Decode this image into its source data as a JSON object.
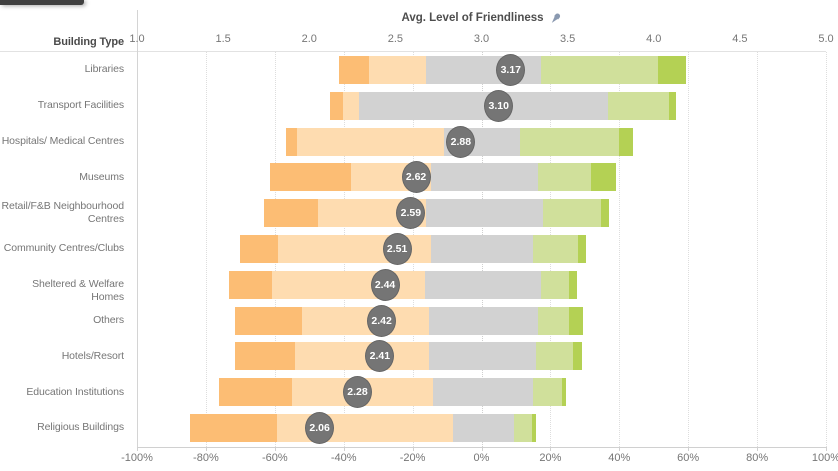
{
  "window": {
    "background": "#ffffff",
    "decoration_tab_color": "#3f3f3f"
  },
  "header": {
    "row_header_label": "Building Type"
  },
  "top_axis": {
    "title": "Avg. Level of Friendliness",
    "pin_icon_color": "#8a99b0",
    "ticks": [
      {
        "label": "1.0",
        "value": 1.0
      },
      {
        "label": "1.5",
        "value": 1.5
      },
      {
        "label": "2.0",
        "value": 2.0
      },
      {
        "label": "2.5",
        "value": 2.5
      },
      {
        "label": "3.0",
        "value": 3.0
      },
      {
        "label": "3.5",
        "value": 3.5
      },
      {
        "label": "4.0",
        "value": 4.0
      },
      {
        "label": "4.5",
        "value": 4.5
      },
      {
        "label": "5.0",
        "value": 5.0
      }
    ],
    "min": 1.0,
    "max": 5.0
  },
  "bottom_axis": {
    "ticks": [
      {
        "label": "-100%",
        "value": -100
      },
      {
        "label": "-80%",
        "value": -80
      },
      {
        "label": "-60%",
        "value": -60
      },
      {
        "label": "-40%",
        "value": -40
      },
      {
        "label": "-20%",
        "value": -20
      },
      {
        "label": "0%",
        "value": 0
      },
      {
        "label": "20%",
        "value": 20
      },
      {
        "label": "40%",
        "value": 40
      },
      {
        "label": "60%",
        "value": 60
      },
      {
        "label": "80%",
        "value": 80
      },
      {
        "label": "100%",
        "value": 100
      }
    ],
    "min": -100,
    "max": 100
  },
  "chart_data": {
    "type": "bar",
    "subtype": "diverging-stacked-likert",
    "title": "Avg. Level of Friendliness",
    "grid": true,
    "x_top_range": [
      1.0,
      5.0
    ],
    "x_bottom_range": [
      -100,
      100
    ],
    "series_names": [
      "rating-1-strong-negative",
      "rating-2-negative",
      "rating-3-neutral",
      "rating-4-positive",
      "rating-5-strong-positive"
    ],
    "series_colors": [
      "#fcbd74",
      "#fedcb0",
      "#d2d2d2",
      "#d0e09b",
      "#b4d154"
    ],
    "circle_color": "#757575",
    "rows": [
      {
        "label_lines": [
          "Libraries"
        ],
        "avg": 3.17,
        "start_pct": -41.3,
        "segments_pct": [
          8.5,
          16.8,
          33.2,
          34.0,
          8.3
        ]
      },
      {
        "label_lines": [
          "Transport Facilities"
        ],
        "avg": 3.1,
        "start_pct": -43.9,
        "segments_pct": [
          3.6,
          4.6,
          72.3,
          17.8,
          2.2
        ]
      },
      {
        "label_lines": [
          "Hospitals/ Medical Centres"
        ],
        "avg": 2.88,
        "start_pct": -56.7,
        "segments_pct": [
          3.2,
          42.7,
          21.9,
          28.7,
          4.2
        ]
      },
      {
        "label_lines": [
          "Museums"
        ],
        "avg": 2.62,
        "start_pct": -61.3,
        "segments_pct": [
          23.4,
          23.2,
          31.0,
          15.5,
          7.1
        ]
      },
      {
        "label_lines": [
          "Retail/F&B Neighbourhood",
          "Centres"
        ],
        "avg": 2.59,
        "start_pct": -63.2,
        "segments_pct": [
          15.8,
          31.4,
          33.9,
          16.8,
          2.3
        ]
      },
      {
        "label_lines": [
          "Community Centres/Clubs"
        ],
        "avg": 2.51,
        "start_pct": -70.2,
        "segments_pct": [
          11.2,
          44.3,
          29.7,
          13.0,
          2.2
        ]
      },
      {
        "label_lines": [
          "Sheltered & Welfare Homes"
        ],
        "avg": 2.44,
        "start_pct": -73.2,
        "segments_pct": [
          12.5,
          44.3,
          33.6,
          8.2,
          2.2
        ]
      },
      {
        "label_lines": [
          "Others"
        ],
        "avg": 2.42,
        "start_pct": -71.6,
        "segments_pct": [
          19.4,
          37.1,
          31.4,
          9.1,
          4.1
        ]
      },
      {
        "label_lines": [
          "Hotels/Resort"
        ],
        "avg": 2.41,
        "start_pct": -71.6,
        "segments_pct": [
          17.4,
          39.1,
          31.0,
          10.8,
          2.5
        ]
      },
      {
        "label_lines": [
          "Education Institutions"
        ],
        "avg": 2.28,
        "start_pct": -76.1,
        "segments_pct": [
          21.0,
          41.1,
          29.0,
          8.3,
          1.1
        ]
      },
      {
        "label_lines": [
          "Religious Buildings"
        ],
        "avg": 2.06,
        "start_pct": -84.5,
        "segments_pct": [
          25.2,
          51.1,
          17.7,
          5.1,
          1.1
        ]
      }
    ]
  }
}
